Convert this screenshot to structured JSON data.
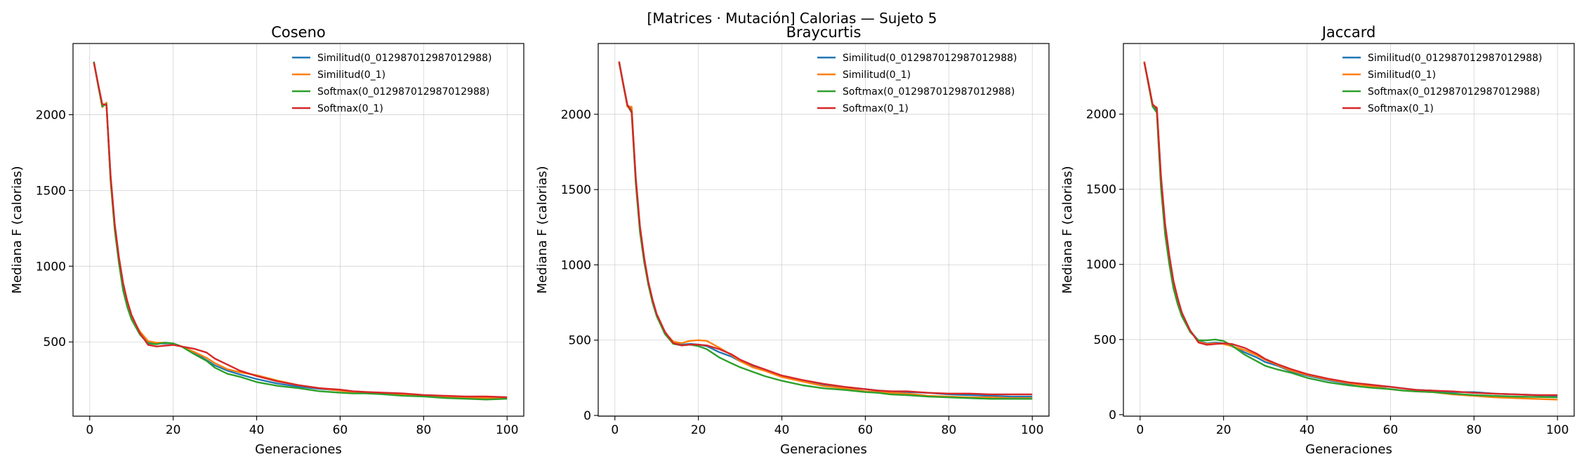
{
  "suptitle": "[Matrices · Mutación] Calorias — Sujeto 5",
  "colors": {
    "Similitud(0_012987012987012988)": "#1f77b4",
    "Similitud(0_1)": "#ff7f0e",
    "Softmax(0_012987012987012988)": "#2ca02c",
    "Softmax(0_1)": "#d62728"
  },
  "chart_data": [
    {
      "type": "line",
      "title": "Coseno",
      "xlabel": "Generaciones",
      "ylabel": "Mediana F (calorias)",
      "xlim": [
        -4,
        104
      ],
      "ylim": [
        10,
        2470
      ],
      "xticks": [
        0,
        20,
        40,
        60,
        80,
        100
      ],
      "yticks": [
        500,
        1000,
        1500,
        2000
      ],
      "grid": true,
      "legend": "top-right",
      "series": [
        {
          "name": "Similitud(0_012987012987012988)",
          "x": [
            1,
            2,
            3,
            4,
            5,
            6,
            7,
            8,
            9,
            10,
            12,
            14,
            16,
            18,
            20,
            22,
            25,
            28,
            30,
            33,
            36,
            40,
            45,
            50,
            55,
            60,
            63,
            66,
            70,
            75,
            80,
            85,
            90,
            95,
            100
          ],
          "y": [
            2350,
            2200,
            2060,
            2075,
            1580,
            1260,
            1040,
            860,
            750,
            660,
            560,
            500,
            490,
            490,
            490,
            470,
            430,
            380,
            345,
            310,
            285,
            255,
            225,
            205,
            190,
            180,
            170,
            165,
            160,
            150,
            145,
            140,
            135,
            130,
            125
          ]
        },
        {
          "name": "Similitud(0_1)",
          "x": [
            1,
            2,
            3,
            4,
            5,
            6,
            7,
            8,
            9,
            10,
            12,
            14,
            16,
            18,
            20,
            22,
            25,
            28,
            30,
            33,
            36,
            40,
            45,
            50,
            55,
            60,
            63,
            66,
            70,
            75,
            80,
            85,
            90,
            95,
            100
          ],
          "y": [
            2345,
            2200,
            2050,
            2080,
            1560,
            1250,
            1030,
            860,
            750,
            665,
            570,
            505,
            495,
            495,
            490,
            470,
            435,
            395,
            360,
            320,
            300,
            280,
            245,
            215,
            195,
            178,
            170,
            165,
            160,
            150,
            145,
            140,
            135,
            130,
            130
          ]
        },
        {
          "name": "Softmax(0_012987012987012988)",
          "x": [
            1,
            2,
            3,
            4,
            5,
            6,
            7,
            8,
            9,
            10,
            12,
            14,
            16,
            18,
            20,
            22,
            25,
            28,
            30,
            33,
            36,
            40,
            45,
            50,
            55,
            60,
            63,
            66,
            70,
            75,
            80,
            85,
            90,
            95,
            100
          ],
          "y": [
            2350,
            2195,
            2055,
            2070,
            1570,
            1240,
            1020,
            840,
            730,
            650,
            550,
            490,
            485,
            495,
            490,
            470,
            420,
            375,
            330,
            290,
            270,
            235,
            210,
            195,
            175,
            165,
            160,
            160,
            155,
            145,
            140,
            130,
            125,
            120,
            125
          ]
        },
        {
          "name": "Softmax(0_1)",
          "x": [
            1,
            2,
            3,
            4,
            5,
            6,
            7,
            8,
            9,
            10,
            12,
            14,
            16,
            18,
            20,
            22,
            25,
            28,
            30,
            33,
            36,
            40,
            45,
            50,
            55,
            60,
            63,
            66,
            70,
            75,
            80,
            85,
            90,
            95,
            100
          ],
          "y": [
            2345,
            2205,
            2070,
            2065,
            1600,
            1280,
            1060,
            890,
            770,
            680,
            560,
            480,
            470,
            475,
            480,
            470,
            455,
            430,
            390,
            350,
            310,
            275,
            240,
            215,
            195,
            185,
            175,
            170,
            165,
            160,
            150,
            145,
            140,
            140,
            135
          ]
        }
      ]
    },
    {
      "type": "line",
      "title": "Braycurtis",
      "xlabel": "Generaciones",
      "ylabel": "Mediana F (calorias)",
      "xlim": [
        -4,
        104
      ],
      "ylim": [
        -5,
        2470
      ],
      "xticks": [
        0,
        20,
        40,
        60,
        80,
        100
      ],
      "yticks": [
        0,
        500,
        1000,
        1500,
        2000
      ],
      "grid": true,
      "legend": "top-right",
      "series": [
        {
          "name": "Similitud(0_012987012987012988)",
          "x": [
            1,
            2,
            3,
            4,
            5,
            6,
            7,
            8,
            9,
            10,
            12,
            14,
            16,
            18,
            20,
            22,
            25,
            28,
            30,
            33,
            36,
            40,
            45,
            50,
            55,
            60,
            63,
            66,
            70,
            75,
            80,
            85,
            90,
            95,
            100
          ],
          "y": [
            2350,
            2200,
            2060,
            2040,
            1560,
            1240,
            1040,
            880,
            760,
            665,
            550,
            480,
            470,
            475,
            470,
            460,
            420,
            390,
            360,
            330,
            300,
            260,
            230,
            200,
            185,
            175,
            165,
            160,
            155,
            150,
            140,
            135,
            130,
            125,
            125
          ]
        },
        {
          "name": "Similitud(0_1)",
          "x": [
            1,
            2,
            3,
            4,
            5,
            6,
            7,
            8,
            9,
            10,
            12,
            14,
            16,
            18,
            20,
            22,
            25,
            28,
            30,
            33,
            36,
            40,
            45,
            50,
            55,
            60,
            63,
            66,
            70,
            75,
            80,
            85,
            90,
            95,
            100
          ],
          "y": [
            2350,
            2195,
            2050,
            2050,
            1560,
            1240,
            1040,
            880,
            760,
            665,
            550,
            490,
            480,
            495,
            500,
            495,
            450,
            400,
            360,
            320,
            295,
            255,
            225,
            195,
            180,
            160,
            155,
            150,
            145,
            130,
            125,
            120,
            120,
            115,
            115
          ]
        },
        {
          "name": "Softmax(0_012987012987012988)",
          "x": [
            1,
            2,
            3,
            4,
            5,
            6,
            7,
            8,
            9,
            10,
            12,
            14,
            16,
            18,
            20,
            22,
            25,
            28,
            30,
            33,
            36,
            40,
            45,
            50,
            55,
            60,
            63,
            66,
            70,
            75,
            80,
            85,
            90,
            95,
            100
          ],
          "y": [
            2345,
            2200,
            2060,
            2010,
            1540,
            1220,
            1020,
            870,
            750,
            660,
            540,
            475,
            465,
            470,
            460,
            440,
            385,
            345,
            320,
            290,
            260,
            230,
            200,
            180,
            170,
            155,
            150,
            140,
            135,
            125,
            120,
            115,
            110,
            110,
            110
          ]
        },
        {
          "name": "Softmax(0_1)",
          "x": [
            1,
            2,
            3,
            4,
            5,
            6,
            7,
            8,
            9,
            10,
            12,
            14,
            16,
            18,
            20,
            22,
            25,
            28,
            30,
            33,
            36,
            40,
            45,
            50,
            55,
            60,
            63,
            66,
            70,
            75,
            80,
            85,
            90,
            95,
            100
          ],
          "y": [
            2350,
            2200,
            2060,
            2020,
            1580,
            1260,
            1050,
            890,
            770,
            675,
            555,
            480,
            465,
            470,
            470,
            465,
            440,
            405,
            370,
            335,
            305,
            265,
            235,
            210,
            190,
            175,
            165,
            160,
            160,
            150,
            145,
            145,
            140,
            140,
            140
          ]
        }
      ]
    },
    {
      "type": "line",
      "title": "Jaccard",
      "xlabel": "Generaciones",
      "ylabel": "Mediana F (calorias)",
      "xlim": [
        -4,
        104
      ],
      "ylim": [
        -10,
        2470
      ],
      "xticks": [
        0,
        20,
        40,
        60,
        80,
        100
      ],
      "yticks": [
        0,
        500,
        1000,
        1500,
        2000
      ],
      "grid": true,
      "legend": "top-right",
      "series": [
        {
          "name": "Similitud(0_012987012987012988)",
          "x": [
            1,
            2,
            3,
            4,
            5,
            6,
            7,
            8,
            9,
            10,
            12,
            14,
            16,
            18,
            20,
            22,
            25,
            28,
            30,
            33,
            36,
            40,
            45,
            50,
            55,
            60,
            63,
            66,
            70,
            75,
            80,
            85,
            90,
            95,
            100
          ],
          "y": [
            2350,
            2200,
            2060,
            2030,
            1560,
            1250,
            1050,
            880,
            770,
            670,
            560,
            490,
            475,
            480,
            475,
            455,
            415,
            380,
            350,
            325,
            290,
            260,
            230,
            205,
            195,
            185,
            175,
            165,
            160,
            150,
            150,
            140,
            135,
            130,
            125
          ]
        },
        {
          "name": "Similitud(0_1)",
          "x": [
            1,
            2,
            3,
            4,
            5,
            6,
            7,
            8,
            9,
            10,
            12,
            14,
            16,
            18,
            20,
            22,
            25,
            28,
            30,
            33,
            36,
            40,
            45,
            50,
            55,
            60,
            63,
            66,
            70,
            75,
            80,
            85,
            90,
            95,
            100
          ],
          "y": [
            2350,
            2195,
            2055,
            2045,
            1570,
            1250,
            1050,
            880,
            770,
            670,
            560,
            485,
            470,
            475,
            470,
            455,
            430,
            395,
            365,
            330,
            295,
            265,
            235,
            210,
            190,
            170,
            160,
            155,
            150,
            135,
            125,
            115,
            110,
            105,
            100
          ]
        },
        {
          "name": "Softmax(0_012987012987012988)",
          "x": [
            1,
            2,
            3,
            4,
            5,
            6,
            7,
            8,
            9,
            10,
            12,
            14,
            16,
            18,
            20,
            22,
            25,
            28,
            30,
            33,
            36,
            40,
            45,
            50,
            55,
            60,
            63,
            66,
            70,
            75,
            80,
            85,
            90,
            95,
            100
          ],
          "y": [
            2345,
            2200,
            2050,
            2010,
            1510,
            1200,
            1000,
            840,
            735,
            655,
            550,
            495,
            495,
            500,
            490,
            460,
            400,
            355,
            325,
            300,
            280,
            245,
            215,
            195,
            180,
            170,
            160,
            155,
            150,
            140,
            130,
            125,
            120,
            118,
            115
          ]
        },
        {
          "name": "Softmax(0_1)",
          "x": [
            1,
            2,
            3,
            4,
            5,
            6,
            7,
            8,
            9,
            10,
            12,
            14,
            16,
            18,
            20,
            22,
            25,
            28,
            30,
            33,
            36,
            40,
            45,
            50,
            55,
            60,
            63,
            66,
            70,
            75,
            80,
            85,
            90,
            95,
            100
          ],
          "y": [
            2345,
            2210,
            2065,
            2040,
            1590,
            1270,
            1060,
            890,
            775,
            680,
            560,
            480,
            465,
            470,
            475,
            470,
            445,
            405,
            370,
            335,
            305,
            270,
            240,
            215,
            200,
            185,
            175,
            165,
            160,
            155,
            145,
            140,
            135,
            130,
            130
          ]
        }
      ]
    }
  ]
}
